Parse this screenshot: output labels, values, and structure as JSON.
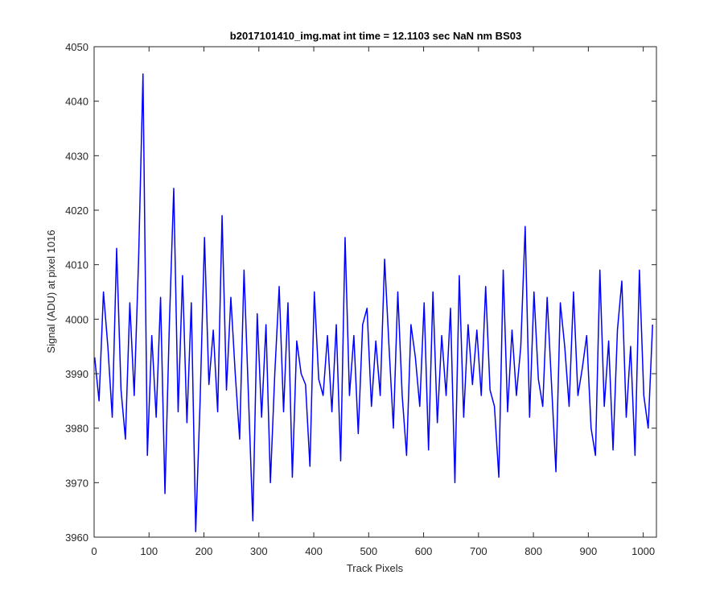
{
  "chart_data": {
    "type": "line",
    "title": "b2017101410_img.mat int time = 12.1103 sec  NaN nm BS03",
    "xlabel": "Track Pixels",
    "ylabel": "Signal (ADU) at pixel 1016",
    "xlim": [
      0,
      1024
    ],
    "ylim": [
      3960,
      4050
    ],
    "xticks": [
      0,
      100,
      200,
      300,
      400,
      500,
      600,
      700,
      800,
      900,
      1000
    ],
    "yticks": [
      3960,
      3970,
      3980,
      3990,
      4000,
      4010,
      4020,
      4030,
      4040,
      4050
    ],
    "grid": false,
    "legend": "none",
    "series": [
      {
        "color": "#0000ff",
        "x_start": 1,
        "x_step": 8,
        "values": [
          3993,
          3985,
          4005,
          3995,
          3982,
          4013,
          3987,
          3978,
          4003,
          3986,
          4011,
          4045,
          3975,
          3997,
          3982,
          4004,
          3968,
          3999,
          4024,
          3983,
          4008,
          3981,
          4003,
          3961,
          3985,
          4015,
          3988,
          3998,
          3983,
          4019,
          3987,
          4004,
          3990,
          3978,
          4009,
          3986,
          3963,
          4001,
          3982,
          3999,
          3970,
          3990,
          4006,
          3983,
          4003,
          3971,
          3996,
          3990,
          3988,
          3973,
          4005,
          3989,
          3986,
          3997,
          3983,
          3999,
          3974,
          4015,
          3986,
          3997,
          3979,
          3999,
          4002,
          3984,
          3996,
          3986,
          4011,
          3995,
          3980,
          4005,
          3986,
          3975,
          3999,
          3993,
          3984,
          4003,
          3976,
          4005,
          3981,
          3997,
          3986,
          4002,
          3970,
          4008,
          3982,
          3999,
          3988,
          3998,
          3986,
          4006,
          3987,
          3984,
          3971,
          4009,
          3983,
          3998,
          3986,
          3995,
          4017,
          3982,
          4005,
          3989,
          3984,
          4004,
          3988,
          3972,
          4003,
          3995,
          3984,
          4005,
          3986,
          3991,
          3997,
          3980,
          3975,
          4009,
          3984,
          3996,
          3976,
          3998,
          4007,
          3982,
          3995,
          3975,
          4009,
          3986,
          3980,
          3999
        ]
      }
    ]
  }
}
